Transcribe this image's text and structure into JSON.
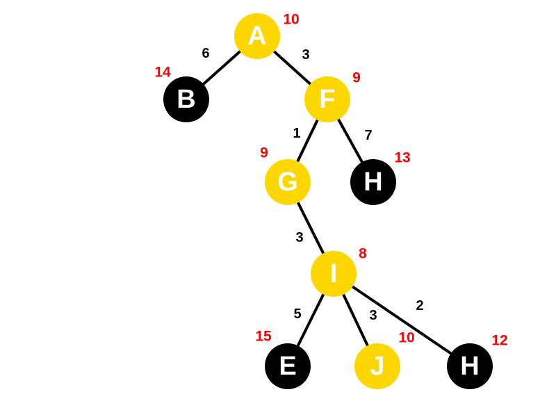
{
  "colors": {
    "visited_node": "#ffd700",
    "unvisited_node": "#000000",
    "node_text": "#ffffff",
    "edge": "#000000",
    "edge_weight_text": "#000000",
    "node_value_text": "#ff0000"
  },
  "nodes": {
    "a": {
      "label": "A",
      "value": "10",
      "state": "visited"
    },
    "b": {
      "label": "B",
      "value": "14",
      "state": "unvisited"
    },
    "f": {
      "label": "F",
      "value": "9",
      "state": "visited"
    },
    "g": {
      "label": "G",
      "value": "9",
      "state": "visited"
    },
    "h1": {
      "label": "H",
      "value": "13",
      "state": "unvisited"
    },
    "i": {
      "label": "I",
      "value": "8",
      "state": "visited"
    },
    "e": {
      "label": "E",
      "value": "15",
      "state": "unvisited"
    },
    "j": {
      "label": "J",
      "value": "10",
      "state": "visited"
    },
    "h2": {
      "label": "H",
      "value": "12",
      "state": "unvisited"
    }
  },
  "edges": {
    "a_b": {
      "from": "A",
      "to": "B",
      "weight": "6"
    },
    "a_f": {
      "from": "A",
      "to": "F",
      "weight": "3"
    },
    "f_g": {
      "from": "F",
      "to": "G",
      "weight": "1"
    },
    "f_h1": {
      "from": "F",
      "to": "H",
      "weight": "7"
    },
    "g_i": {
      "from": "G",
      "to": "I",
      "weight": "3"
    },
    "i_e": {
      "from": "I",
      "to": "E",
      "weight": "5"
    },
    "i_j": {
      "from": "I",
      "to": "J",
      "weight": "3"
    },
    "i_h2": {
      "from": "I",
      "to": "H",
      "weight": "2"
    }
  }
}
